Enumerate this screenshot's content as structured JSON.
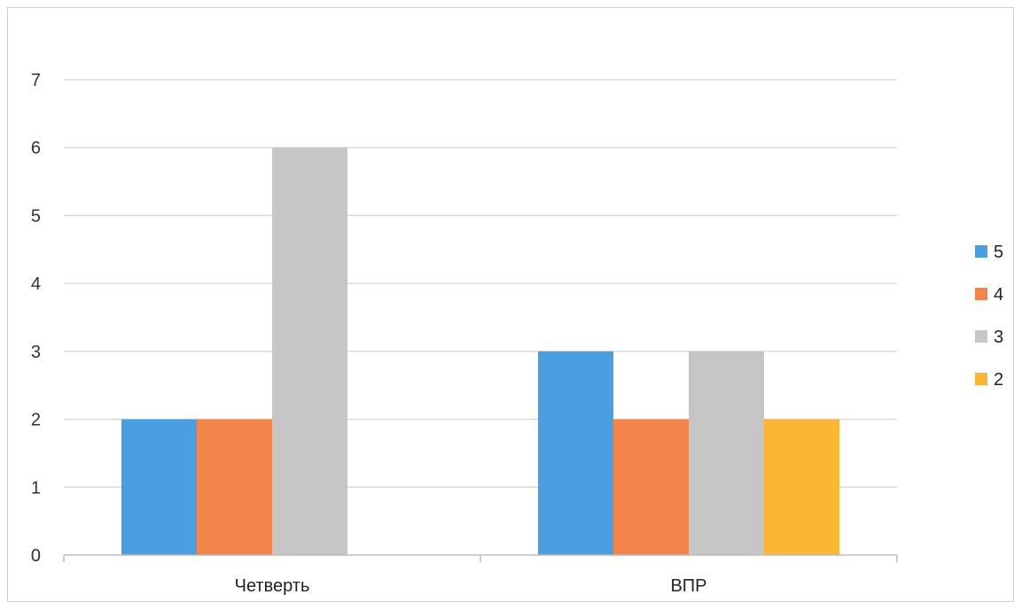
{
  "chart_data": {
    "type": "bar",
    "categories": [
      "Четверть",
      "ВПР"
    ],
    "series": [
      {
        "name": "5",
        "values": [
          2,
          3
        ],
        "color": "#4A9FE3"
      },
      {
        "name": "4",
        "values": [
          2,
          2
        ],
        "color": "#F4844A"
      },
      {
        "name": "3",
        "values": [
          6,
          3
        ],
        "color": "#C6C6C6"
      },
      {
        "name": "2",
        "values": [
          0,
          2
        ],
        "color": "#FDB634"
      }
    ],
    "ylim": [
      0,
      7
    ],
    "yticks": [
      0,
      1,
      2,
      3,
      4,
      5,
      6,
      7
    ],
    "grid": true,
    "legend_position": "right"
  }
}
